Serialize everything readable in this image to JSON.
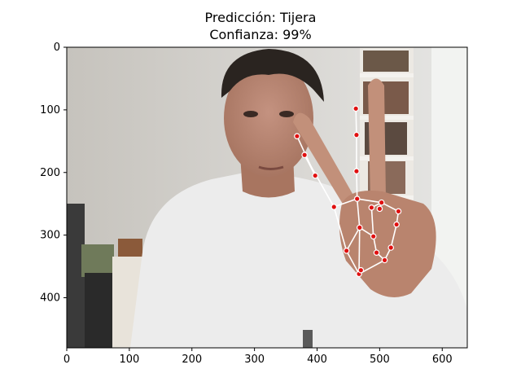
{
  "title_line1": "Predicción: Tijera",
  "title_line2": "Confianza: 99%",
  "colors": {
    "landmark_fill": "#e01010",
    "landmark_stroke": "#ffffff",
    "connection": "#ffffff",
    "wall": "#cfcfcb",
    "shirt": "#eeeeee",
    "skin": "#b78672",
    "hair": "#2a2420"
  },
  "chart_data": {
    "type": "image_with_landmarks",
    "xlim": [
      0,
      640
    ],
    "ylim": [
      480,
      0
    ],
    "x_ticks": [
      0,
      100,
      200,
      300,
      400,
      500,
      600
    ],
    "y_ticks": [
      0,
      100,
      200,
      300,
      400
    ],
    "landmarks": [
      {
        "x": 467,
        "y": 362
      },
      {
        "x": 447,
        "y": 325
      },
      {
        "x": 427,
        "y": 255
      },
      {
        "x": 397,
        "y": 205
      },
      {
        "x": 368,
        "y": 142
      },
      {
        "x": 468,
        "y": 288
      },
      {
        "x": 464,
        "y": 242
      },
      {
        "x": 463,
        "y": 198
      },
      {
        "x": 463,
        "y": 140
      },
      {
        "x": 462,
        "y": 98
      },
      {
        "x": 490,
        "y": 302
      },
      {
        "x": 487,
        "y": 256
      },
      {
        "x": 503,
        "y": 248
      },
      {
        "x": 500,
        "y": 258
      },
      {
        "x": 508,
        "y": 340
      },
      {
        "x": 495,
        "y": 328
      },
      {
        "x": 518,
        "y": 320
      },
      {
        "x": 527,
        "y": 283
      },
      {
        "x": 530,
        "y": 262
      },
      {
        "x": 470,
        "y": 356
      },
      {
        "x": 380,
        "y": 172
      }
    ],
    "connections": [
      [
        0,
        1
      ],
      [
        1,
        2
      ],
      [
        2,
        20
      ],
      [
        20,
        3
      ],
      [
        3,
        4
      ],
      [
        0,
        5
      ],
      [
        5,
        6
      ],
      [
        6,
        7
      ],
      [
        7,
        8
      ],
      [
        8,
        9
      ],
      [
        5,
        10
      ],
      [
        10,
        11
      ],
      [
        11,
        12
      ],
      [
        12,
        13
      ],
      [
        10,
        15
      ],
      [
        15,
        14
      ],
      [
        14,
        16
      ],
      [
        16,
        17
      ],
      [
        17,
        18
      ],
      [
        2,
        6
      ],
      [
        6,
        12
      ],
      [
        12,
        18
      ],
      [
        0,
        14
      ],
      [
        1,
        5
      ],
      [
        0,
        19
      ]
    ]
  }
}
